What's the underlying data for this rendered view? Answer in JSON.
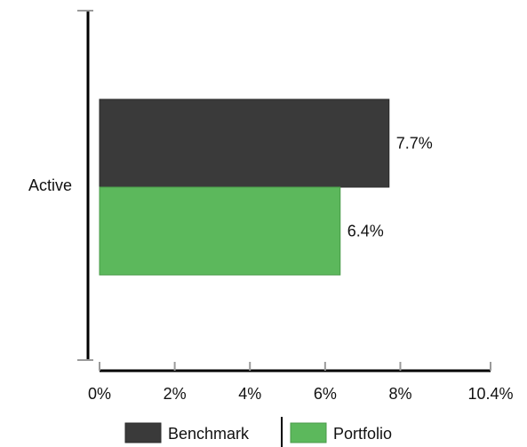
{
  "chart_data": {
    "type": "bar",
    "orientation": "horizontal",
    "categories": [
      "Active"
    ],
    "series": [
      {
        "name": "Benchmark",
        "values": [
          7.7
        ],
        "color": "#3a3a3a",
        "labels": [
          "7.7%"
        ]
      },
      {
        "name": "Portfolio",
        "values": [
          6.4
        ],
        "color": "#5cb85c",
        "labels": [
          "6.4%"
        ]
      }
    ],
    "x_ticks": [
      {
        "value": 0,
        "label": "0%"
      },
      {
        "value": 2,
        "label": "2%"
      },
      {
        "value": 4,
        "label": "4%"
      },
      {
        "value": 6,
        "label": "6%"
      },
      {
        "value": 8,
        "label": "8%"
      },
      {
        "value": 10.4,
        "label": "10.4%"
      }
    ],
    "xlim": [
      0,
      10.4
    ],
    "grid": false,
    "legend_position": "bottom"
  }
}
